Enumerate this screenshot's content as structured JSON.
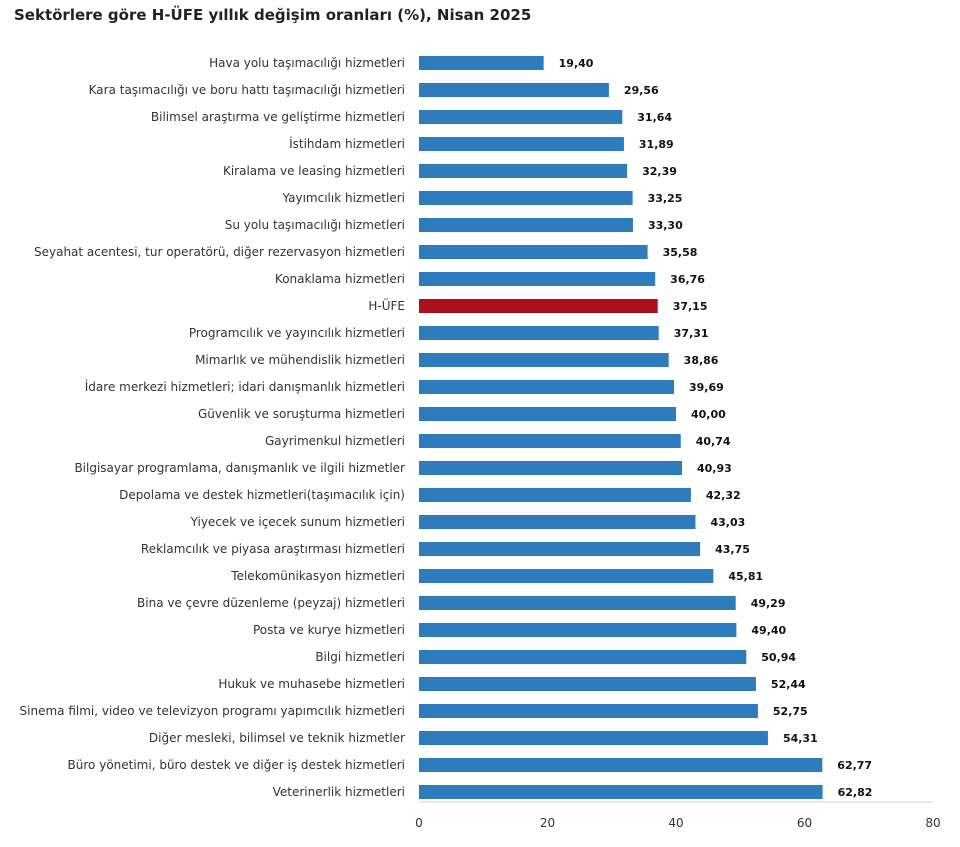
{
  "chart_data": {
    "type": "bar",
    "orientation": "horizontal",
    "title": "Sektörlere göre H-ÜFE yıllık değişim oranları (%), Nisan 2025",
    "categories": [
      "Hava yolu taşımacılığı hizmetleri",
      "Kara taşımacılığı ve boru hattı taşımacılığı hizmetleri",
      "Bilimsel araştırma ve geliştirme hizmetleri",
      "İstihdam hizmetleri",
      "Kiralama ve leasing hizmetleri",
      "Yayımcılık hizmetleri",
      "Su yolu taşımacılığı hizmetleri",
      "Seyahat acentesi, tur operatörü, diğer rezervasyon hizmetleri",
      "Konaklama hizmetleri",
      "H-ÜFE",
      "Programcılık ve yayıncılık hizmetleri",
      "Mimarlık ve mühendislik hizmetleri",
      "İdare merkezi hizmetleri; idari danışmanlık hizmetleri",
      "Güvenlik ve soruşturma hizmetleri",
      "Gayrimenkul hizmetleri",
      "Bilgisayar programlama, danışmanlık ve ilgili hizmetler",
      "Depolama ve destek hizmetleri(taşımacılık için)",
      "Yiyecek ve içecek sunum hizmetleri",
      "Reklamcılık ve piyasa araştırması hizmetleri",
      "Telekomünikasyon hizmetleri",
      "Bina ve çevre düzenleme (peyzaj) hizmetleri",
      "Posta ve kurye hizmetleri",
      "Bilgi hizmetleri",
      "Hukuk ve muhasebe hizmetleri",
      "Sinema filmi, video ve televizyon programı yapımcılık hizmetleri",
      "Diğer mesleki, bilimsel ve teknik hizmetler",
      "Büro yönetimi, büro destek ve diğer iş destek hizmetleri",
      "Veterinerlik hizmetleri"
    ],
    "values": [
      19.4,
      29.56,
      31.64,
      31.89,
      32.39,
      33.25,
      33.3,
      35.58,
      36.76,
      37.15,
      37.31,
      38.86,
      39.69,
      40.0,
      40.74,
      40.93,
      42.32,
      43.03,
      43.75,
      45.81,
      49.29,
      49.4,
      50.94,
      52.44,
      52.75,
      54.31,
      62.77,
      62.82
    ],
    "value_labels": [
      "19,40",
      "29,56",
      "31,64",
      "31,89",
      "32,39",
      "33,25",
      "33,30",
      "35,58",
      "36,76",
      "37,15",
      "37,31",
      "38,86",
      "39,69",
      "40,00",
      "40,74",
      "40,93",
      "42,32",
      "43,03",
      "43,75",
      "45,81",
      "49,29",
      "49,40",
      "50,94",
      "52,44",
      "52,75",
      "54,31",
      "62,77",
      "62,82"
    ],
    "highlight_category": "H-ÜFE",
    "xlim": [
      0,
      80
    ],
    "xticks": [
      0,
      20,
      40,
      60,
      80
    ],
    "xtick_labels": [
      "0",
      "20",
      "40",
      "60",
      "80"
    ],
    "grid": false,
    "legend": "none",
    "colors": {
      "bar": "#2e7bbd",
      "highlight": "#a8101a",
      "axis": "#d0d0d0"
    }
  }
}
